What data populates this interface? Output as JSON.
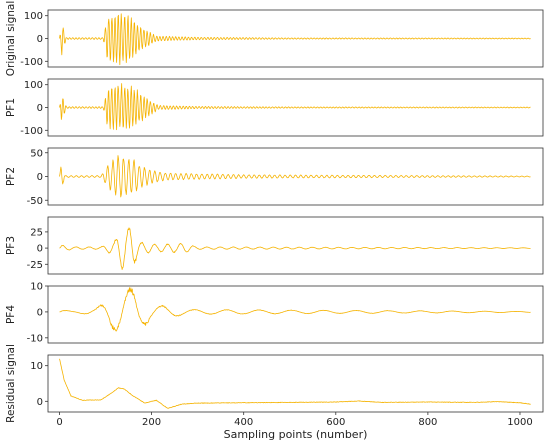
{
  "chart_data": [
    {
      "type": "line",
      "ylabel": "Original signal",
      "xlim": [
        -25,
        1050
      ],
      "ylim": [
        -125,
        125
      ],
      "yticks": [
        100,
        0,
        -100
      ],
      "amplitude_envelope": [
        [
          0,
          0
        ],
        [
          5,
          75
        ],
        [
          15,
          4
        ],
        [
          95,
          4
        ],
        [
          105,
          110
        ],
        [
          130,
          120
        ],
        [
          150,
          115
        ],
        [
          175,
          60
        ],
        [
          210,
          12
        ],
        [
          300,
          6
        ],
        [
          500,
          3
        ],
        [
          1023,
          2
        ]
      ],
      "color": "#f5b301"
    },
    {
      "type": "line",
      "ylabel": "PF1",
      "xlim": [
        -25,
        1050
      ],
      "ylim": [
        -125,
        125
      ],
      "yticks": [
        100,
        0,
        -100
      ],
      "amplitude_envelope": [
        [
          0,
          0
        ],
        [
          5,
          70
        ],
        [
          15,
          4
        ],
        [
          95,
          4
        ],
        [
          105,
          95
        ],
        [
          135,
          110
        ],
        [
          160,
          95
        ],
        [
          185,
          50
        ],
        [
          215,
          10
        ],
        [
          300,
          5
        ],
        [
          500,
          3
        ],
        [
          1023,
          2
        ]
      ],
      "color": "#f5b301"
    },
    {
      "type": "line",
      "ylabel": "PF2",
      "xlim": [
        -25,
        1050
      ],
      "ylim": [
        -60,
        60
      ],
      "yticks": [
        50,
        0,
        -50
      ],
      "amplitude_envelope": [
        [
          0,
          0
        ],
        [
          4,
          30
        ],
        [
          12,
          2
        ],
        [
          90,
          2
        ],
        [
          105,
          25
        ],
        [
          130,
          50
        ],
        [
          155,
          40
        ],
        [
          185,
          20
        ],
        [
          230,
          8
        ],
        [
          400,
          4
        ],
        [
          600,
          3
        ],
        [
          1023,
          1
        ]
      ],
      "color": "#f5b301"
    },
    {
      "type": "line",
      "ylabel": "PF3",
      "xlim": [
        -25,
        1050
      ],
      "ylim": [
        -40,
        48
      ],
      "yticks": [
        25,
        0,
        -25
      ],
      "amplitude_envelope": [
        [
          0,
          0
        ],
        [
          5,
          5
        ],
        [
          30,
          2
        ],
        [
          90,
          2
        ],
        [
          120,
          12
        ],
        [
          135,
          35
        ],
        [
          155,
          35
        ],
        [
          175,
          10
        ],
        [
          210,
          6
        ],
        [
          270,
          8
        ],
        [
          300,
          2
        ],
        [
          1023,
          0.5
        ]
      ],
      "color": "#f5b301"
    },
    {
      "type": "line",
      "ylabel": "PF4",
      "xlim": [
        -25,
        1050
      ],
      "ylim": [
        -12,
        10
      ],
      "yticks": [
        10,
        0,
        -10
      ],
      "amplitude_envelope": [
        [
          0,
          0
        ],
        [
          5,
          0.8
        ],
        [
          30,
          0.3
        ],
        [
          80,
          1.5
        ],
        [
          125,
          9
        ],
        [
          160,
          10
        ],
        [
          200,
          3
        ],
        [
          230,
          2.5
        ],
        [
          280,
          1
        ],
        [
          1023,
          0.2
        ]
      ],
      "color": "#f5b301"
    },
    {
      "type": "line",
      "ylabel": "Residual signal",
      "xlabel": "Sampling points (number)",
      "xlim": [
        -25,
        1050
      ],
      "ylim": [
        -3,
        13
      ],
      "yticks": [
        10,
        0
      ],
      "xticks": [
        0,
        200,
        400,
        600,
        800,
        1000
      ],
      "shape_points": [
        [
          0,
          12
        ],
        [
          10,
          6
        ],
        [
          25,
          1.5
        ],
        [
          50,
          0.3
        ],
        [
          90,
          0.4
        ],
        [
          115,
          2.5
        ],
        [
          128,
          3.8
        ],
        [
          140,
          3.5
        ],
        [
          160,
          1.5
        ],
        [
          185,
          -0.5
        ],
        [
          210,
          0.3
        ],
        [
          235,
          -2.0
        ],
        [
          265,
          -0.8
        ],
        [
          300,
          -0.5
        ],
        [
          400,
          -0.4
        ],
        [
          500,
          -0.3
        ],
        [
          600,
          -0.2
        ],
        [
          650,
          0.1
        ],
        [
          700,
          -0.3
        ],
        [
          800,
          -0.2
        ],
        [
          900,
          -0.3
        ],
        [
          950,
          -0.1
        ],
        [
          1000,
          -0.4
        ],
        [
          1023,
          -0.8
        ]
      ],
      "color": "#f5b301"
    }
  ]
}
